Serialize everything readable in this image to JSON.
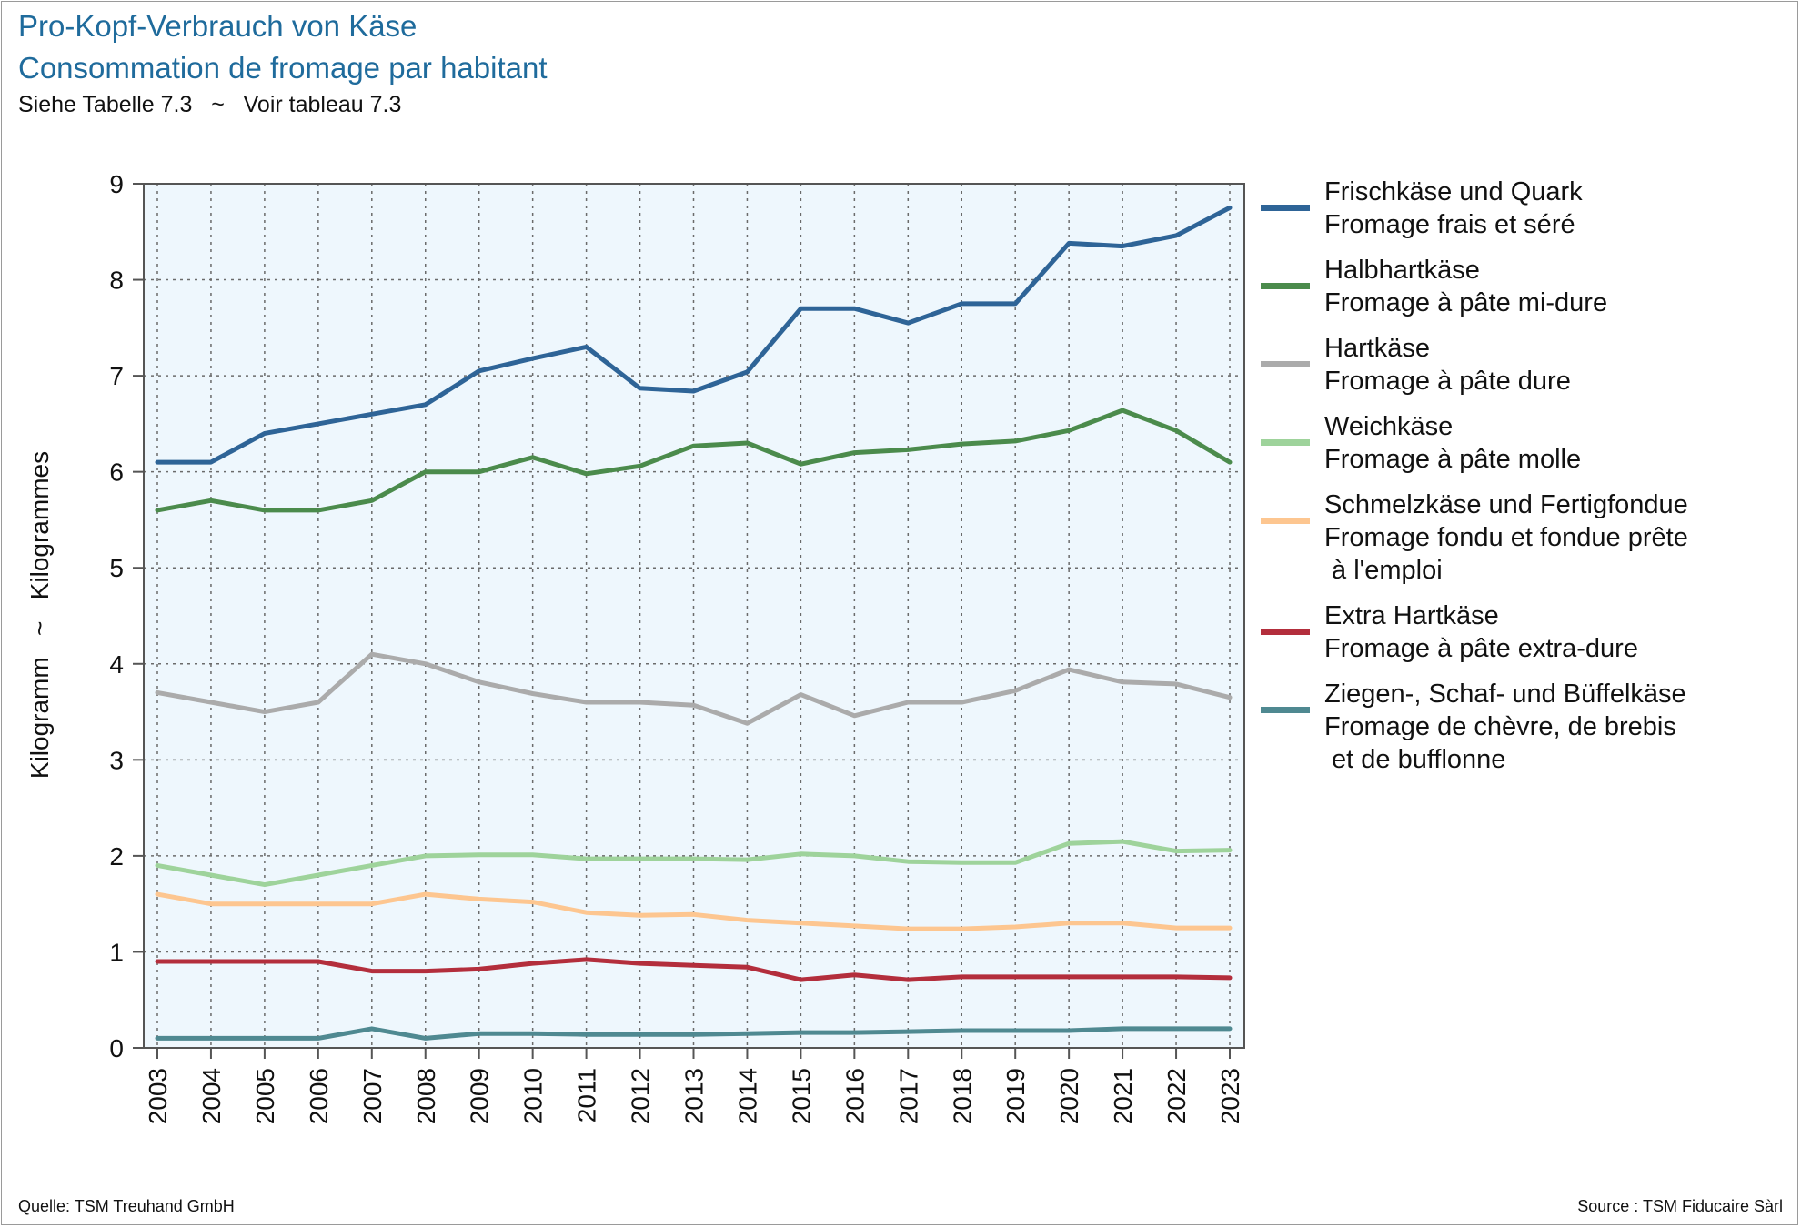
{
  "header": {
    "title_de": "Pro-Kopf-Verbrauch von Käse",
    "title_fr": "Consommation de fromage par habitant",
    "note": "Siehe Tabelle 7.3   ~   Voir tableau 7.3"
  },
  "footer": {
    "source_left": "Quelle: TSM Treuhand GmbH",
    "source_right": "Source : TSM Fiducaire Sàrl"
  },
  "chart_data": {
    "type": "line",
    "ylabel": "Kilogramm   ~   Kilogrammes",
    "xlabel": "",
    "ylim": [
      0,
      9
    ],
    "y_ticks": [
      "0",
      "1",
      "2",
      "3",
      "4",
      "5",
      "6",
      "7",
      "8",
      "9"
    ],
    "x": [
      "2003",
      "2004",
      "2005",
      "2006",
      "2007",
      "2008",
      "2009",
      "2010",
      "2011",
      "2012",
      "2013",
      "2014",
      "2015",
      "2016",
      "2017",
      "2018",
      "2019",
      "2020",
      "2021",
      "2022",
      "2023"
    ],
    "grid": true,
    "legend_position": "right",
    "background_color": "#eef7fd",
    "series": [
      {
        "name_de": "Frischkäse und Quark",
        "name_fr": "Fromage frais et séré",
        "color": "#2e6497",
        "values": [
          6.1,
          6.1,
          6.4,
          6.5,
          6.6,
          6.7,
          7.05,
          7.18,
          7.3,
          6.87,
          6.84,
          7.04,
          7.7,
          7.7,
          7.55,
          7.75,
          7.75,
          8.38,
          8.35,
          8.46,
          8.75
        ]
      },
      {
        "name_de": "Halbhartkäse",
        "name_fr": "Fromage à pâte mi-dure",
        "color": "#4b8b4c",
        "values": [
          5.6,
          5.7,
          5.6,
          5.6,
          5.7,
          6.0,
          6.0,
          6.15,
          5.98,
          6.06,
          6.27,
          6.3,
          6.08,
          6.2,
          6.23,
          6.29,
          6.32,
          6.43,
          6.64,
          6.43,
          6.1
        ]
      },
      {
        "name_de": "Hartkäse",
        "name_fr": "Fromage à pâte dure",
        "color": "#ababab",
        "values": [
          3.7,
          3.6,
          3.5,
          3.6,
          4.1,
          4.0,
          3.81,
          3.69,
          3.6,
          3.6,
          3.57,
          3.38,
          3.68,
          3.46,
          3.6,
          3.6,
          3.72,
          3.94,
          3.81,
          3.79,
          3.65
        ]
      },
      {
        "name_de": "Weichkäse",
        "name_fr": "Fromage à pâte molle",
        "color": "#9ed39b",
        "values": [
          1.9,
          1.8,
          1.7,
          1.8,
          1.9,
          2.0,
          2.01,
          2.01,
          1.97,
          1.97,
          1.97,
          1.96,
          2.02,
          2.0,
          1.94,
          1.93,
          1.93,
          2.13,
          2.15,
          2.05,
          2.06
        ]
      },
      {
        "name_de": "Schmelzkäse und Fertigfondue",
        "name_fr": "Fromage fondu et fondue prête\n à l'emploi",
        "color": "#fdc690",
        "values": [
          1.6,
          1.5,
          1.5,
          1.5,
          1.5,
          1.6,
          1.55,
          1.52,
          1.41,
          1.38,
          1.39,
          1.33,
          1.3,
          1.27,
          1.24,
          1.24,
          1.26,
          1.3,
          1.3,
          1.25,
          1.25
        ]
      },
      {
        "name_de": "Extra Hartkäse",
        "name_fr": "Fromage à pâte extra-dure",
        "color": "#b32e3c",
        "values": [
          0.9,
          0.9,
          0.9,
          0.9,
          0.8,
          0.8,
          0.82,
          0.88,
          0.92,
          0.88,
          0.86,
          0.84,
          0.71,
          0.76,
          0.71,
          0.74,
          0.74,
          0.74,
          0.74,
          0.74,
          0.73
        ]
      },
      {
        "name_de": "Ziegen-, Schaf- und Büffelkäse",
        "name_fr": "Fromage de chèvre, de brebis\n et de bufflonne",
        "color": "#4f8991",
        "values": [
          0.1,
          0.1,
          0.1,
          0.1,
          0.2,
          0.1,
          0.15,
          0.15,
          0.14,
          0.14,
          0.14,
          0.15,
          0.16,
          0.16,
          0.17,
          0.18,
          0.18,
          0.18,
          0.2,
          0.2,
          0.2
        ]
      }
    ]
  }
}
